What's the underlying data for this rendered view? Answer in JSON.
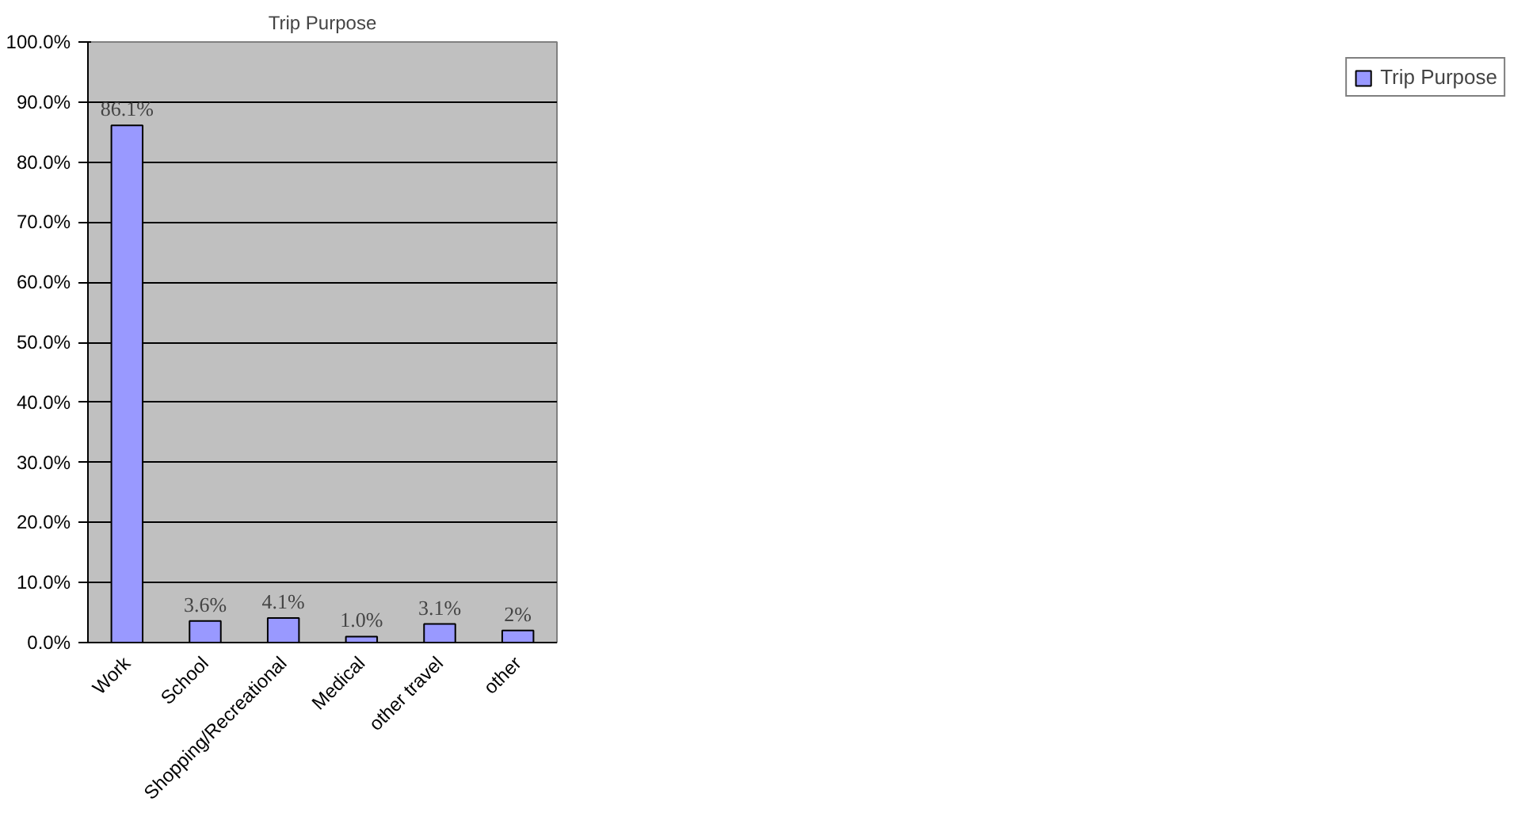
{
  "chart_data": {
    "type": "bar",
    "title": "Trip Purpose",
    "categories": [
      "Work",
      "School",
      "Shopping/Recreational",
      "Medical",
      "other travel",
      "other"
    ],
    "series": [
      {
        "name": "Trip Purpose",
        "color": "#9999ff",
        "values": [
          86.1,
          3.6,
          4.1,
          1.0,
          3.1,
          2
        ],
        "value_labels": [
          "86.1%",
          "3.6%",
          "4.1%",
          "1.0%",
          "3.1%",
          "2%"
        ]
      }
    ],
    "ylim": [
      0,
      100
    ],
    "yticks": [
      {
        "value": 0,
        "label": "0.0%"
      },
      {
        "value": 10,
        "label": "10.0%"
      },
      {
        "value": 20,
        "label": "20.0%"
      },
      {
        "value": 30,
        "label": "30.0%"
      },
      {
        "value": 40,
        "label": "40.0%"
      },
      {
        "value": 50,
        "label": "50.0%"
      },
      {
        "value": 60,
        "label": "60.0%"
      },
      {
        "value": 70,
        "label": "70.0%"
      },
      {
        "value": 80,
        "label": "80.0%"
      },
      {
        "value": 90,
        "label": "90.0%"
      },
      {
        "value": 100,
        "label": "100.0%"
      }
    ],
    "grid": "y",
    "legend": "right"
  }
}
